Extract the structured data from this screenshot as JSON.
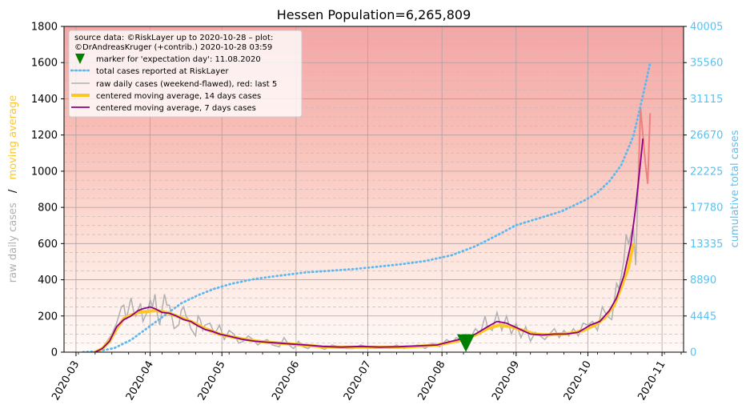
{
  "chart_data": {
    "type": "line",
    "title": "Hessen Population=6,265,809",
    "ylabel_left_parts": [
      "raw daily cases",
      "/",
      "moving average"
    ],
    "ylabel_right": "cumulative total cases",
    "ylim_left": [
      0,
      1800
    ],
    "yticks_left": [
      "0",
      "200",
      "400",
      "600",
      "800",
      "1000",
      "1200",
      "1400",
      "1600",
      "1800"
    ],
    "ylim_right": [
      0,
      40005
    ],
    "yticks_right": [
      "0",
      "4445",
      "8890",
      "13335",
      "17780",
      "22225",
      "26670",
      "31115",
      "35560",
      "40005"
    ],
    "xlim": [
      "2020-02-25",
      "2020-11-10"
    ],
    "xticks": [
      "2020-03",
      "2020-04",
      "2020-05",
      "2020-06",
      "2020-07",
      "2020-08",
      "2020-09",
      "2020-10",
      "2020-11"
    ],
    "grid": true,
    "background": "gradient, light red at top to white at bottom",
    "legend_position": "top-left",
    "legend": {
      "source_line1": "source data: ©RiskLayer up to 2020-10-28 – plot:",
      "source_line2": "©DrAndreasKruger (+contrib.) 2020-10-28 03:59",
      "items": [
        "marker for 'expectation day': 11.08.2020",
        "total cases reported at RiskLayer",
        "raw daily cases (weekend-flawed), red: last 5",
        "centered moving average, 14 days cases",
        "centered moving average, 7 days cases"
      ]
    },
    "marker": {
      "date": "2020-08-11",
      "value": 50
    },
    "colors": {
      "raw": "#b0b0b0",
      "raw_last5": "#f08080",
      "ma14": "#ffc820",
      "ma7": "#8b008b",
      "total": "#5bb8f0",
      "marker": "#008000",
      "left_label_raw": "#b0b0b0",
      "left_label_ma": "#ffc820",
      "right_axis": "#5bc0f0"
    },
    "series": {
      "raw_daily": [
        [
          "2020-03-08",
          0
        ],
        [
          "2020-03-10",
          10
        ],
        [
          "2020-03-12",
          25
        ],
        [
          "2020-03-14",
          60
        ],
        [
          "2020-03-16",
          100
        ],
        [
          "2020-03-18",
          160
        ],
        [
          "2020-03-20",
          250
        ],
        [
          "2020-03-21",
          260
        ],
        [
          "2020-03-22",
          180
        ],
        [
          "2020-03-24",
          300
        ],
        [
          "2020-03-25",
          230
        ],
        [
          "2020-03-26",
          200
        ],
        [
          "2020-03-28",
          270
        ],
        [
          "2020-03-29",
          170
        ],
        [
          "2020-03-31",
          230
        ],
        [
          "2020-04-01",
          290
        ],
        [
          "2020-04-02",
          250
        ],
        [
          "2020-04-03",
          320
        ],
        [
          "2020-04-04",
          210
        ],
        [
          "2020-04-05",
          150
        ],
        [
          "2020-04-07",
          320
        ],
        [
          "2020-04-08",
          260
        ],
        [
          "2020-04-09",
          260
        ],
        [
          "2020-04-10",
          200
        ],
        [
          "2020-04-11",
          130
        ],
        [
          "2020-04-13",
          150
        ],
        [
          "2020-04-14",
          230
        ],
        [
          "2020-04-15",
          250
        ],
        [
          "2020-04-16",
          200
        ],
        [
          "2020-04-17",
          180
        ],
        [
          "2020-04-18",
          130
        ],
        [
          "2020-04-20",
          90
        ],
        [
          "2020-04-21",
          200
        ],
        [
          "2020-04-22",
          180
        ],
        [
          "2020-04-23",
          120
        ],
        [
          "2020-04-24",
          150
        ],
        [
          "2020-04-26",
          160
        ],
        [
          "2020-04-28",
          100
        ],
        [
          "2020-04-30",
          150
        ],
        [
          "2020-05-02",
          70
        ],
        [
          "2020-05-04",
          120
        ],
        [
          "2020-05-06",
          100
        ],
        [
          "2020-05-08",
          50
        ],
        [
          "2020-05-10",
          60
        ],
        [
          "2020-05-12",
          90
        ],
        [
          "2020-05-14",
          70
        ],
        [
          "2020-05-16",
          40
        ],
        [
          "2020-05-18",
          60
        ],
        [
          "2020-05-20",
          70
        ],
        [
          "2020-05-22",
          40
        ],
        [
          "2020-05-25",
          30
        ],
        [
          "2020-05-27",
          80
        ],
        [
          "2020-05-29",
          40
        ],
        [
          "2020-05-31",
          20
        ],
        [
          "2020-06-02",
          60
        ],
        [
          "2020-06-04",
          30
        ],
        [
          "2020-06-06",
          20
        ],
        [
          "2020-06-08",
          40
        ],
        [
          "2020-06-10",
          30
        ],
        [
          "2020-06-13",
          15
        ],
        [
          "2020-06-16",
          40
        ],
        [
          "2020-06-19",
          30
        ],
        [
          "2020-06-22",
          20
        ],
        [
          "2020-06-25",
          20
        ],
        [
          "2020-06-28",
          40
        ],
        [
          "2020-07-01",
          30
        ],
        [
          "2020-07-04",
          20
        ],
        [
          "2020-07-07",
          30
        ],
        [
          "2020-07-10",
          20
        ],
        [
          "2020-07-13",
          40
        ],
        [
          "2020-07-16",
          20
        ],
        [
          "2020-07-19",
          30
        ],
        [
          "2020-07-22",
          40
        ],
        [
          "2020-07-25",
          20
        ],
        [
          "2020-07-28",
          50
        ],
        [
          "2020-07-31",
          30
        ],
        [
          "2020-08-03",
          70
        ],
        [
          "2020-08-05",
          50
        ],
        [
          "2020-08-07",
          80
        ],
        [
          "2020-08-09",
          70
        ],
        [
          "2020-08-11",
          100
        ],
        [
          "2020-08-13",
          80
        ],
        [
          "2020-08-15",
          130
        ],
        [
          "2020-08-17",
          100
        ],
        [
          "2020-08-19",
          200
        ],
        [
          "2020-08-20",
          140
        ],
        [
          "2020-08-22",
          120
        ],
        [
          "2020-08-24",
          220
        ],
        [
          "2020-08-26",
          120
        ],
        [
          "2020-08-28",
          200
        ],
        [
          "2020-08-30",
          100
        ],
        [
          "2020-09-01",
          160
        ],
        [
          "2020-09-03",
          80
        ],
        [
          "2020-09-05",
          140
        ],
        [
          "2020-09-07",
          60
        ],
        [
          "2020-09-09",
          110
        ],
        [
          "2020-09-11",
          90
        ],
        [
          "2020-09-13",
          70
        ],
        [
          "2020-09-15",
          100
        ],
        [
          "2020-09-17",
          130
        ],
        [
          "2020-09-19",
          80
        ],
        [
          "2020-09-21",
          120
        ],
        [
          "2020-09-23",
          90
        ],
        [
          "2020-09-25",
          130
        ],
        [
          "2020-09-27",
          90
        ],
        [
          "2020-09-29",
          160
        ],
        [
          "2020-10-01",
          150
        ],
        [
          "2020-10-03",
          170
        ],
        [
          "2020-10-05",
          120
        ],
        [
          "2020-10-07",
          250
        ],
        [
          "2020-10-09",
          200
        ],
        [
          "2020-10-11",
          180
        ],
        [
          "2020-10-13",
          380
        ],
        [
          "2020-10-14",
          350
        ],
        [
          "2020-10-16",
          500
        ],
        [
          "2020-10-17",
          650
        ],
        [
          "2020-10-18",
          600
        ],
        [
          "2020-10-20",
          700
        ],
        [
          "2020-10-21",
          480
        ],
        [
          "2020-10-22",
          900
        ]
      ],
      "raw_last5": [
        [
          "2020-10-23",
          1350
        ],
        [
          "2020-10-24",
          1200
        ],
        [
          "2020-10-25",
          1050
        ],
        [
          "2020-10-26",
          930
        ],
        [
          "2020-10-27",
          1320
        ]
      ],
      "ma14": [
        [
          "2020-03-09",
          0
        ],
        [
          "2020-03-12",
          20
        ],
        [
          "2020-03-15",
          60
        ],
        [
          "2020-03-18",
          130
        ],
        [
          "2020-03-21",
          185
        ],
        [
          "2020-03-24",
          205
        ],
        [
          "2020-03-27",
          220
        ],
        [
          "2020-03-31",
          225
        ],
        [
          "2020-04-03",
          230
        ],
        [
          "2020-04-06",
          225
        ],
        [
          "2020-04-09",
          215
        ],
        [
          "2020-04-12",
          200
        ],
        [
          "2020-04-15",
          185
        ],
        [
          "2020-04-18",
          170
        ],
        [
          "2020-04-21",
          150
        ],
        [
          "2020-04-24",
          130
        ],
        [
          "2020-04-27",
          115
        ],
        [
          "2020-04-30",
          100
        ],
        [
          "2020-05-05",
          85
        ],
        [
          "2020-05-10",
          72
        ],
        [
          "2020-05-15",
          62
        ],
        [
          "2020-05-20",
          55
        ],
        [
          "2020-05-25",
          50
        ],
        [
          "2020-05-30",
          45
        ],
        [
          "2020-06-05",
          38
        ],
        [
          "2020-06-12",
          30
        ],
        [
          "2020-06-20",
          27
        ],
        [
          "2020-06-28",
          28
        ],
        [
          "2020-07-06",
          27
        ],
        [
          "2020-07-14",
          27
        ],
        [
          "2020-07-22",
          32
        ],
        [
          "2020-07-30",
          40
        ],
        [
          "2020-08-05",
          55
        ],
        [
          "2020-08-10",
          70
        ],
        [
          "2020-08-15",
          95
        ],
        [
          "2020-08-20",
          130
        ],
        [
          "2020-08-25",
          150
        ],
        [
          "2020-08-30",
          140
        ],
        [
          "2020-09-04",
          120
        ],
        [
          "2020-09-09",
          100
        ],
        [
          "2020-09-14",
          95
        ],
        [
          "2020-09-19",
          100
        ],
        [
          "2020-09-24",
          105
        ],
        [
          "2020-09-29",
          120
        ],
        [
          "2020-10-04",
          150
        ],
        [
          "2020-10-08",
          190
        ],
        [
          "2020-10-12",
          260
        ],
        [
          "2020-10-15",
          360
        ],
        [
          "2020-10-18",
          470
        ],
        [
          "2020-10-20",
          600
        ]
      ],
      "ma7": [
        [
          "2020-03-09",
          0
        ],
        [
          "2020-03-12",
          20
        ],
        [
          "2020-03-15",
          60
        ],
        [
          "2020-03-18",
          140
        ],
        [
          "2020-03-21",
          180
        ],
        [
          "2020-03-24",
          200
        ],
        [
          "2020-03-27",
          230
        ],
        [
          "2020-03-29",
          240
        ],
        [
          "2020-04-01",
          250
        ],
        [
          "2020-04-03",
          240
        ],
        [
          "2020-04-06",
          220
        ],
        [
          "2020-04-09",
          215
        ],
        [
          "2020-04-12",
          200
        ],
        [
          "2020-04-15",
          180
        ],
        [
          "2020-04-18",
          170
        ],
        [
          "2020-04-21",
          145
        ],
        [
          "2020-04-24",
          125
        ],
        [
          "2020-04-27",
          115
        ],
        [
          "2020-04-30",
          100
        ],
        [
          "2020-05-05",
          85
        ],
        [
          "2020-05-10",
          70
        ],
        [
          "2020-05-15",
          60
        ],
        [
          "2020-05-20",
          55
        ],
        [
          "2020-05-25",
          50
        ],
        [
          "2020-05-30",
          45
        ],
        [
          "2020-06-05",
          40
        ],
        [
          "2020-06-12",
          32
        ],
        [
          "2020-06-20",
          28
        ],
        [
          "2020-06-28",
          32
        ],
        [
          "2020-07-06",
          28
        ],
        [
          "2020-07-14",
          30
        ],
        [
          "2020-07-22",
          35
        ],
        [
          "2020-07-30",
          40
        ],
        [
          "2020-08-05",
          60
        ],
        [
          "2020-08-10",
          75
        ],
        [
          "2020-08-15",
          100
        ],
        [
          "2020-08-20",
          140
        ],
        [
          "2020-08-24",
          170
        ],
        [
          "2020-08-28",
          160
        ],
        [
          "2020-09-02",
          130
        ],
        [
          "2020-09-07",
          100
        ],
        [
          "2020-09-12",
          95
        ],
        [
          "2020-09-17",
          100
        ],
        [
          "2020-09-22",
          100
        ],
        [
          "2020-09-27",
          110
        ],
        [
          "2020-10-02",
          150
        ],
        [
          "2020-10-06",
          170
        ],
        [
          "2020-10-10",
          230
        ],
        [
          "2020-10-13",
          300
        ],
        [
          "2020-10-16",
          420
        ],
        [
          "2020-10-19",
          600
        ],
        [
          "2020-10-21",
          800
        ],
        [
          "2020-10-23",
          1050
        ],
        [
          "2020-10-24",
          1180
        ]
      ],
      "total_cases": [
        [
          "2020-03-04",
          0
        ],
        [
          "2020-03-10",
          100
        ],
        [
          "2020-03-17",
          500
        ],
        [
          "2020-03-24",
          1500
        ],
        [
          "2020-03-31",
          3000
        ],
        [
          "2020-04-07",
          4500
        ],
        [
          "2020-04-14",
          6000
        ],
        [
          "2020-04-21",
          7000
        ],
        [
          "2020-04-28",
          7800
        ],
        [
          "2020-05-05",
          8400
        ],
        [
          "2020-05-15",
          9000
        ],
        [
          "2020-05-25",
          9400
        ],
        [
          "2020-06-05",
          9800
        ],
        [
          "2020-06-15",
          10000
        ],
        [
          "2020-06-25",
          10200
        ],
        [
          "2020-07-05",
          10500
        ],
        [
          "2020-07-15",
          10800
        ],
        [
          "2020-07-25",
          11200
        ],
        [
          "2020-08-05",
          11900
        ],
        [
          "2020-08-15",
          13000
        ],
        [
          "2020-08-25",
          14500
        ],
        [
          "2020-09-01",
          15600
        ],
        [
          "2020-09-10",
          16400
        ],
        [
          "2020-09-20",
          17300
        ],
        [
          "2020-09-30",
          18700
        ],
        [
          "2020-10-05",
          19600
        ],
        [
          "2020-10-10",
          21000
        ],
        [
          "2020-10-15",
          23000
        ],
        [
          "2020-10-20",
          26500
        ],
        [
          "2020-10-24",
          31500
        ],
        [
          "2020-10-27",
          35500
        ]
      ]
    }
  }
}
